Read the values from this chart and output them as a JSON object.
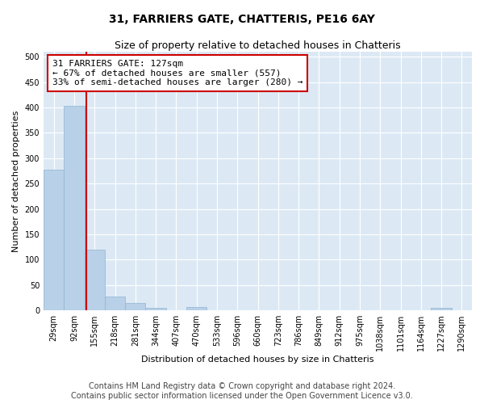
{
  "title": "31, FARRIERS GATE, CHATTERIS, PE16 6AY",
  "subtitle": "Size of property relative to detached houses in Chatteris",
  "xlabel": "Distribution of detached houses by size in Chatteris",
  "ylabel": "Number of detached properties",
  "footer_line1": "Contains HM Land Registry data © Crown copyright and database right 2024.",
  "footer_line2": "Contains public sector information licensed under the Open Government Licence v3.0.",
  "bin_labels": [
    "29sqm",
    "92sqm",
    "155sqm",
    "218sqm",
    "281sqm",
    "344sqm",
    "407sqm",
    "470sqm",
    "533sqm",
    "596sqm",
    "660sqm",
    "723sqm",
    "786sqm",
    "849sqm",
    "912sqm",
    "975sqm",
    "1038sqm",
    "1101sqm",
    "1164sqm",
    "1227sqm",
    "1290sqm"
  ],
  "bar_values": [
    278,
    404,
    120,
    27,
    14,
    4,
    0,
    6,
    0,
    0,
    0,
    0,
    0,
    0,
    0,
    0,
    0,
    0,
    0,
    4,
    0
  ],
  "bar_color": "#b8d0e8",
  "bar_edge_color": "#90b4d0",
  "vline_color": "#cc0000",
  "vline_x": 1.58,
  "annotation_line1": "31 FARRIERS GATE: 127sqm",
  "annotation_line2": "← 67% of detached houses are smaller (557)",
  "annotation_line3": "33% of semi-detached houses are larger (280) →",
  "ylim": [
    0,
    510
  ],
  "yticks": [
    0,
    50,
    100,
    150,
    200,
    250,
    300,
    350,
    400,
    450,
    500
  ],
  "plot_bg_color": "#dce9f5",
  "title_fontsize": 10,
  "subtitle_fontsize": 9,
  "axis_label_fontsize": 8,
  "tick_fontsize": 7,
  "annotation_fontsize": 8,
  "footer_fontsize": 7
}
